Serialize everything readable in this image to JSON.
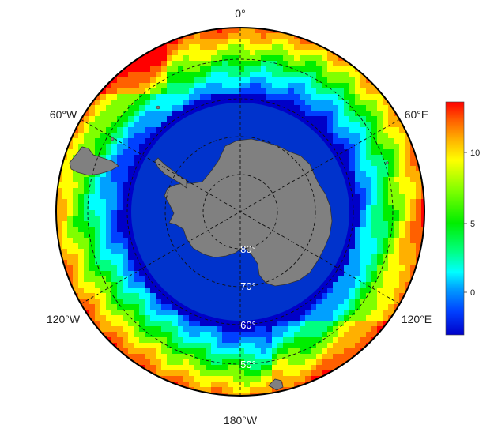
{
  "map": {
    "projection": "south-polar-stereographic",
    "longitude_labels": {
      "top": "0°",
      "upper_left": "60°W",
      "upper_right": "60°E",
      "lower_left": "120°W",
      "lower_right": "120°E",
      "bottom": "180°W"
    },
    "latitude_labels": [
      "80°",
      "70°",
      "60°",
      "50°"
    ],
    "land_color": "#808080",
    "ice_shelf_color": "#0033cc"
  },
  "colorbar": {
    "ticks": [
      "0",
      "5",
      "10"
    ],
    "range": [
      -3,
      13.5
    ],
    "colors": [
      "#0000c8",
      "#0040ff",
      "#00a0ff",
      "#00ffff",
      "#00ff80",
      "#00ee00",
      "#80ff00",
      "#ffff00",
      "#ffb000",
      "#ff6000",
      "#ff0000"
    ]
  }
}
